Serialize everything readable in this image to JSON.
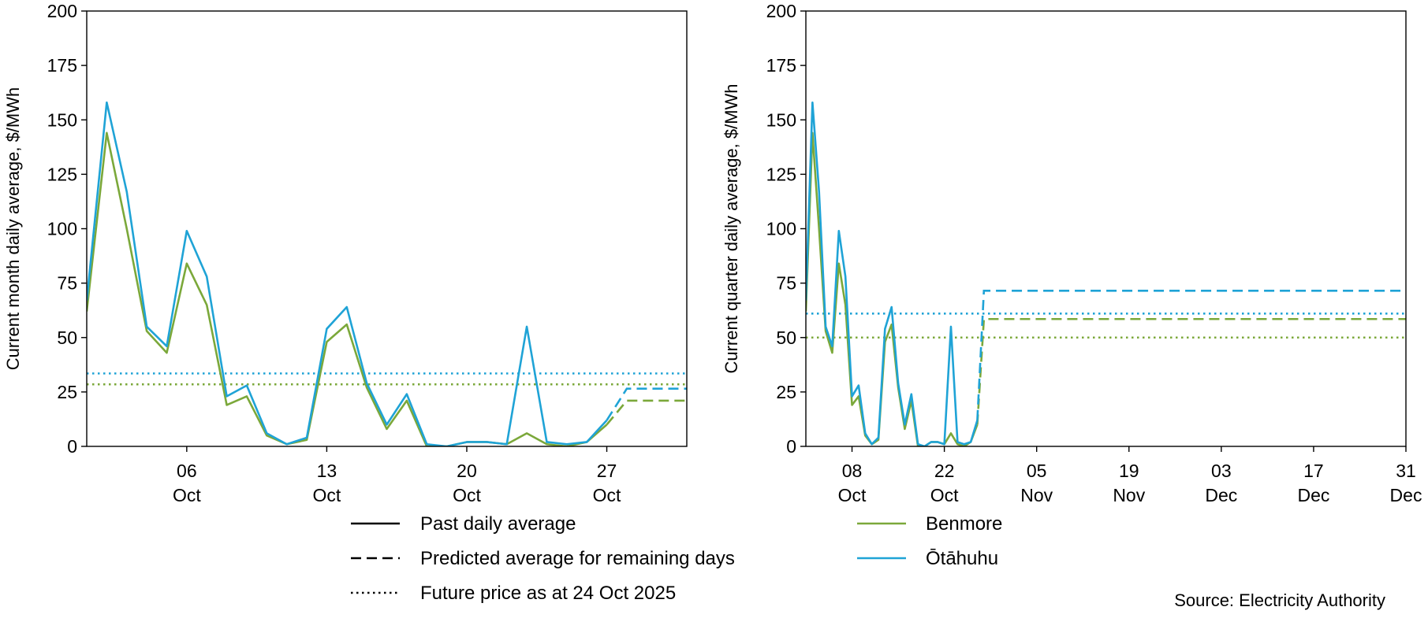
{
  "source": "Source: Electricity Authority",
  "legend": {
    "styles": [
      {
        "label": "Past daily average",
        "dash": "solid"
      },
      {
        "label": "Predicted average for remaining days",
        "dash": "dashed"
      },
      {
        "label": "Future price as at 24 Oct 2025",
        "dash": "dotted"
      }
    ],
    "series": [
      {
        "label": "Benmore",
        "color": "#7BA83A"
      },
      {
        "label": "Ōtāhuhu",
        "color": "#1FA3D6"
      }
    ]
  },
  "chart_data": [
    {
      "type": "line",
      "ylabel": "Current month daily average, $/MWh",
      "ylim": [
        0,
        200
      ],
      "yticks": [
        0,
        25,
        50,
        75,
        100,
        125,
        150,
        175,
        200
      ],
      "xlim": [
        0,
        30
      ],
      "xticks": [
        {
          "x": 5,
          "line1": "06",
          "line2": "Oct"
        },
        {
          "x": 12,
          "line1": "13",
          "line2": "Oct"
        },
        {
          "x": 19,
          "line1": "20",
          "line2": "Oct"
        },
        {
          "x": 26,
          "line1": "27",
          "line2": "Oct"
        }
      ],
      "series": [
        {
          "name": "Benmore",
          "color": "#7BA83A",
          "past": [
            [
              0,
              62
            ],
            [
              1,
              144
            ],
            [
              2,
              100
            ],
            [
              3,
              53
            ],
            [
              4,
              43
            ],
            [
              5,
              84
            ],
            [
              6,
              65
            ],
            [
              7,
              19
            ],
            [
              8,
              23
            ],
            [
              9,
              5
            ],
            [
              10,
              1
            ],
            [
              11,
              3
            ],
            [
              12,
              48
            ],
            [
              13,
              56
            ],
            [
              14,
              27
            ],
            [
              15,
              8
            ],
            [
              16,
              21
            ],
            [
              17,
              0
            ],
            [
              18,
              0
            ],
            [
              19,
              2
            ],
            [
              20,
              2
            ],
            [
              21,
              1
            ],
            [
              22,
              6
            ],
            [
              23,
              1
            ],
            [
              24,
              0
            ],
            [
              25,
              2
            ],
            [
              26,
              10
            ]
          ],
          "predicted": [
            [
              26,
              10
            ],
            [
              27,
              21
            ],
            [
              30,
              21
            ]
          ],
          "future": 28.5
        },
        {
          "name": "Ōtāhuhu",
          "color": "#1FA3D6",
          "past": [
            [
              0,
              67
            ],
            [
              1,
              158
            ],
            [
              2,
              117
            ],
            [
              3,
              55
            ],
            [
              4,
              46
            ],
            [
              5,
              99
            ],
            [
              6,
              78
            ],
            [
              7,
              23
            ],
            [
              8,
              28
            ],
            [
              9,
              6
            ],
            [
              10,
              1
            ],
            [
              11,
              4
            ],
            [
              12,
              54
            ],
            [
              13,
              64
            ],
            [
              14,
              29
            ],
            [
              15,
              10
            ],
            [
              16,
              24
            ],
            [
              17,
              1
            ],
            [
              18,
              0
            ],
            [
              19,
              2
            ],
            [
              20,
              2
            ],
            [
              21,
              1
            ],
            [
              22,
              55
            ],
            [
              23,
              2
            ],
            [
              24,
              1
            ],
            [
              25,
              2
            ],
            [
              26,
              12
            ]
          ],
          "predicted": [
            [
              26,
              12
            ],
            [
              27,
              26.5
            ],
            [
              30,
              26.5
            ]
          ],
          "future": 33.5
        }
      ]
    },
    {
      "type": "line",
      "ylabel": "Current quarter daily average, $/MWh",
      "ylim": [
        0,
        200
      ],
      "yticks": [
        0,
        25,
        50,
        75,
        100,
        125,
        150,
        175,
        200
      ],
      "xlim": [
        0,
        91
      ],
      "xticks": [
        {
          "x": 7,
          "line1": "08",
          "line2": "Oct"
        },
        {
          "x": 21,
          "line1": "22",
          "line2": "Oct"
        },
        {
          "x": 35,
          "line1": "05",
          "line2": "Nov"
        },
        {
          "x": 49,
          "line1": "19",
          "line2": "Nov"
        },
        {
          "x": 63,
          "line1": "03",
          "line2": "Dec"
        },
        {
          "x": 77,
          "line1": "17",
          "line2": "Dec"
        },
        {
          "x": 91,
          "line1": "31",
          "line2": "Dec"
        }
      ],
      "series": [
        {
          "name": "Benmore",
          "color": "#7BA83A",
          "past": [
            [
              0,
              62
            ],
            [
              1,
              144
            ],
            [
              2,
              100
            ],
            [
              3,
              53
            ],
            [
              4,
              43
            ],
            [
              5,
              84
            ],
            [
              6,
              65
            ],
            [
              7,
              19
            ],
            [
              8,
              23
            ],
            [
              9,
              5
            ],
            [
              10,
              1
            ],
            [
              11,
              3
            ],
            [
              12,
              48
            ],
            [
              13,
              56
            ],
            [
              14,
              27
            ],
            [
              15,
              8
            ],
            [
              16,
              21
            ],
            [
              17,
              0
            ],
            [
              18,
              0
            ],
            [
              19,
              2
            ],
            [
              20,
              2
            ],
            [
              21,
              1
            ],
            [
              22,
              6
            ],
            [
              23,
              1
            ],
            [
              24,
              0
            ],
            [
              25,
              2
            ],
            [
              26,
              10
            ]
          ],
          "predicted": [
            [
              26,
              10
            ],
            [
              27,
              58.5
            ],
            [
              91,
              58.5
            ]
          ],
          "future": 50
        },
        {
          "name": "Ōtāhuhu",
          "color": "#1FA3D6",
          "past": [
            [
              0,
              67
            ],
            [
              1,
              158
            ],
            [
              2,
              117
            ],
            [
              3,
              55
            ],
            [
              4,
              46
            ],
            [
              5,
              99
            ],
            [
              6,
              78
            ],
            [
              7,
              23
            ],
            [
              8,
              28
            ],
            [
              9,
              6
            ],
            [
              10,
              1
            ],
            [
              11,
              4
            ],
            [
              12,
              54
            ],
            [
              13,
              64
            ],
            [
              14,
              29
            ],
            [
              15,
              10
            ],
            [
              16,
              24
            ],
            [
              17,
              1
            ],
            [
              18,
              0
            ],
            [
              19,
              2
            ],
            [
              20,
              2
            ],
            [
              21,
              1
            ],
            [
              22,
              55
            ],
            [
              23,
              2
            ],
            [
              24,
              1
            ],
            [
              25,
              2
            ],
            [
              26,
              12
            ]
          ],
          "predicted": [
            [
              26,
              12
            ],
            [
              27,
              71.5
            ],
            [
              91,
              71.5
            ]
          ],
          "future": 61
        }
      ]
    }
  ]
}
